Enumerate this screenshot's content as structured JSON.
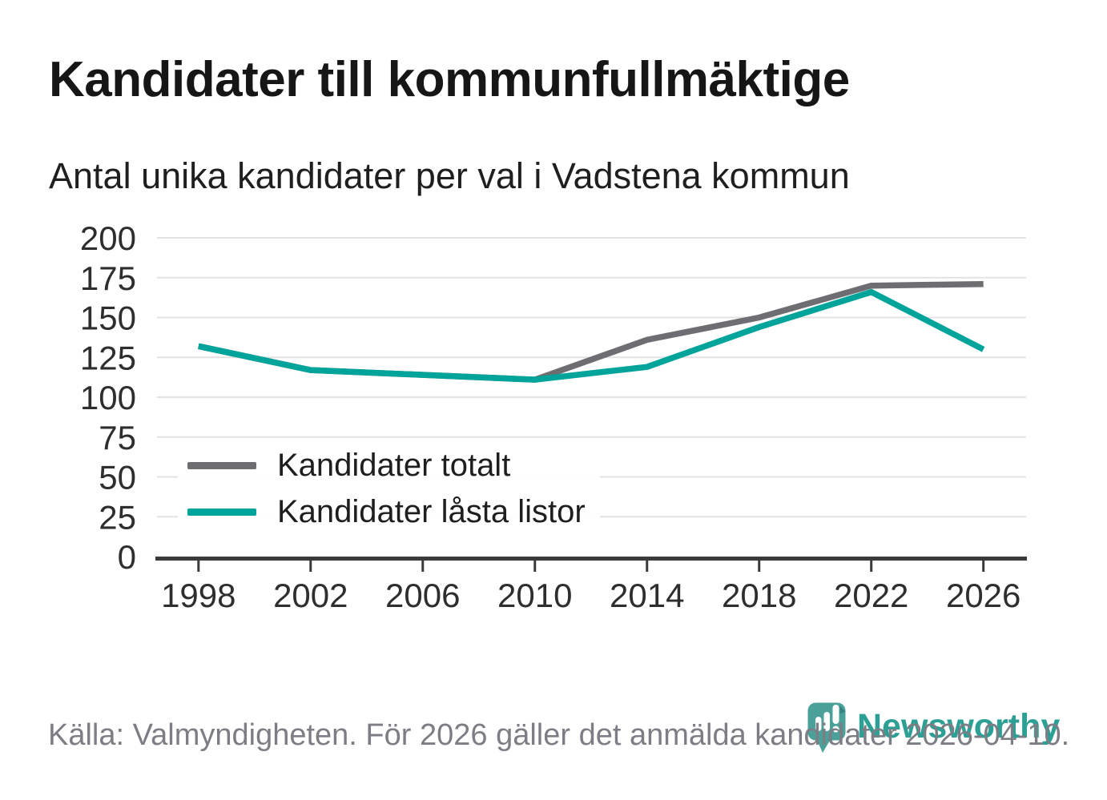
{
  "header": {
    "title": "Kandidater till kommunfullmäktige",
    "subtitle": "Antal unika kandidater per val i Vadstena kommun"
  },
  "chart_data": {
    "type": "line",
    "x": [
      1998,
      2002,
      2006,
      2010,
      2014,
      2018,
      2022,
      2026
    ],
    "series": [
      {
        "name": "Kandidater totalt",
        "color": "#6e6e72",
        "values": [
          132,
          117,
          114,
          111,
          136,
          150,
          170,
          171
        ]
      },
      {
        "name": "Kandidater låsta listor",
        "color": "#00a49b",
        "values": [
          132,
          117,
          114,
          111,
          119,
          144,
          166,
          130
        ]
      }
    ],
    "ylim": [
      0,
      200
    ],
    "yticks": [
      0,
      25,
      50,
      75,
      100,
      125,
      150,
      175,
      200
    ],
    "grid": true,
    "legend_position": "inside bottom-left",
    "line_width": 7.5,
    "grid_color": "#e3e3e3",
    "axis_color": "#3a3a3a",
    "tick_label_color": "#2e2e2e"
  },
  "footer": {
    "source": "Källa: Valmyndigheten. För 2026 gäller det anmälda kandidater 2026-04-10."
  },
  "logo": {
    "text": "Newsworthy",
    "icon": "newsworthy-pin-barchart-icon",
    "text_color": "#2da096",
    "icon_color": "#4ba19a",
    "icon_fold_color": "#37857e"
  }
}
